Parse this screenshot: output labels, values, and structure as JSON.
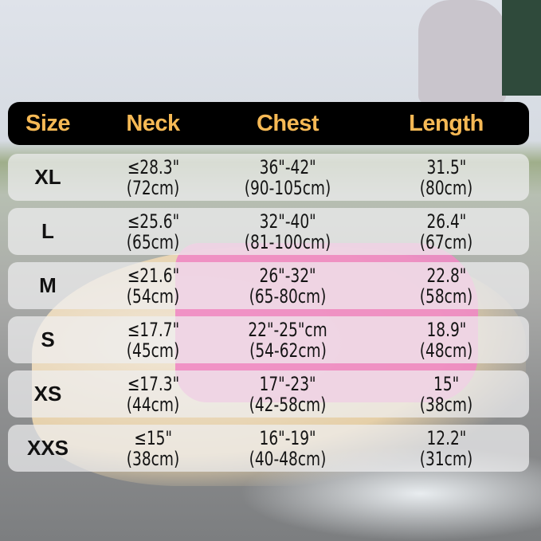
{
  "headers": [
    "Size",
    "Neck",
    "Chest",
    "Length"
  ],
  "rows": [
    {
      "size": "XL",
      "neck": "≤28.3\"",
      "neck_cm": "(72cm)",
      "chest": "36\"-42\"",
      "chest_cm": "(90-105cm)",
      "length": "31.5\"",
      "length_cm": "(80cm)"
    },
    {
      "size": "L",
      "neck": "≤25.6\"",
      "neck_cm": "(65cm)",
      "chest": "32\"-40\"",
      "chest_cm": "(81-100cm)",
      "length": "26.4\"",
      "length_cm": "(67cm)"
    },
    {
      "size": "M",
      "neck": "≤21.6\"",
      "neck_cm": "(54cm)",
      "chest": "26\"-32\"",
      "chest_cm": "(65-80cm)",
      "length": "22.8\"",
      "length_cm": "(58cm)"
    },
    {
      "size": "S",
      "neck": "≤17.7\"",
      "neck_cm": "(45cm)",
      "chest": "22\"-25\"cm",
      "chest_cm": "(54-62cm)",
      "length": "18.9\"",
      "length_cm": "(48cm)"
    },
    {
      "size": "XS",
      "neck": "≤17.3\"",
      "neck_cm": "(44cm)",
      "chest": "17\"-23\"",
      "chest_cm": "(42-58cm)",
      "length": "15\"",
      "length_cm": "(38cm)"
    },
    {
      "size": "XXS",
      "neck": "≤15\"",
      "neck_cm": "(38cm)",
      "chest": "16\"-19\"",
      "chest_cm": "(40-48cm)",
      "length": "12.2\"",
      "length_cm": "(31cm)"
    }
  ],
  "colors": {
    "header_bg": "#000000",
    "header_text": "#f6b955",
    "coat": "#f08ac4"
  }
}
